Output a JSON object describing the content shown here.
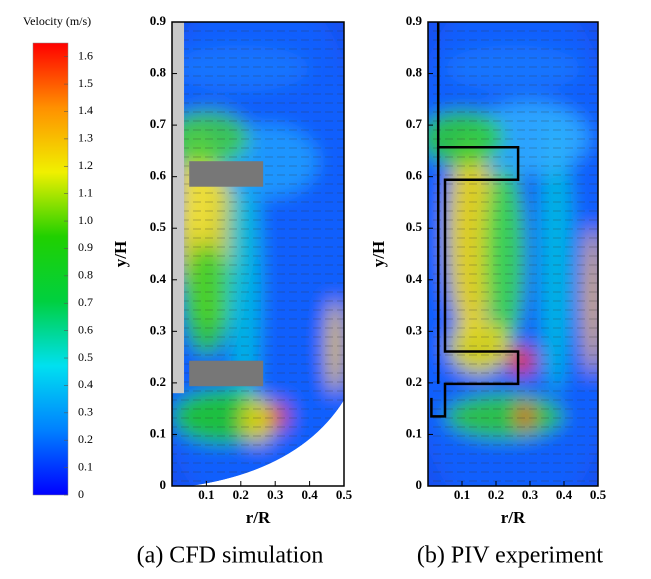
{
  "colorbar": {
    "title": "Velocity (m/s)",
    "lim": [
      0,
      1.65
    ],
    "ticks": [
      0,
      0.1,
      0.2,
      0.3,
      0.4,
      0.5,
      0.6,
      0.7,
      0.8,
      0.9,
      {
        "value": 1,
        "label": "1.0"
      },
      1.1,
      1.2,
      1.3,
      1.4,
      1.5,
      1.6
    ],
    "colors": [
      "#0000ff",
      "#0080ff",
      "#00e0f0",
      "#00d040",
      "#20d000",
      "#f0f000",
      "#ff9000",
      "#ff0000"
    ]
  },
  "chart_data": [
    {
      "type": "contour",
      "caption": "(a) CFD simulation",
      "xlabel": "r/R",
      "ylabel": "y/H",
      "xlim": [
        0,
        0.5
      ],
      "ylim": [
        0,
        0.9
      ],
      "xticks": [
        0.1,
        0.2,
        0.3,
        0.4,
        0.5
      ],
      "yticks": [
        0,
        0.1,
        0.2,
        0.3,
        0.4,
        0.5,
        0.6,
        0.7,
        0.8,
        0.9
      ]
    },
    {
      "type": "contour",
      "caption": "(b) PIV experiment",
      "xlabel": "r/R",
      "ylabel": "y/H",
      "xlim": [
        0,
        0.5
      ],
      "ylim": [
        0,
        0.9
      ],
      "xticks": [
        0.1,
        0.2,
        0.3,
        0.4,
        0.5
      ],
      "yticks": [
        0,
        0.1,
        0.2,
        0.3,
        0.4,
        0.5,
        0.6,
        0.7,
        0.8,
        0.9
      ]
    }
  ]
}
